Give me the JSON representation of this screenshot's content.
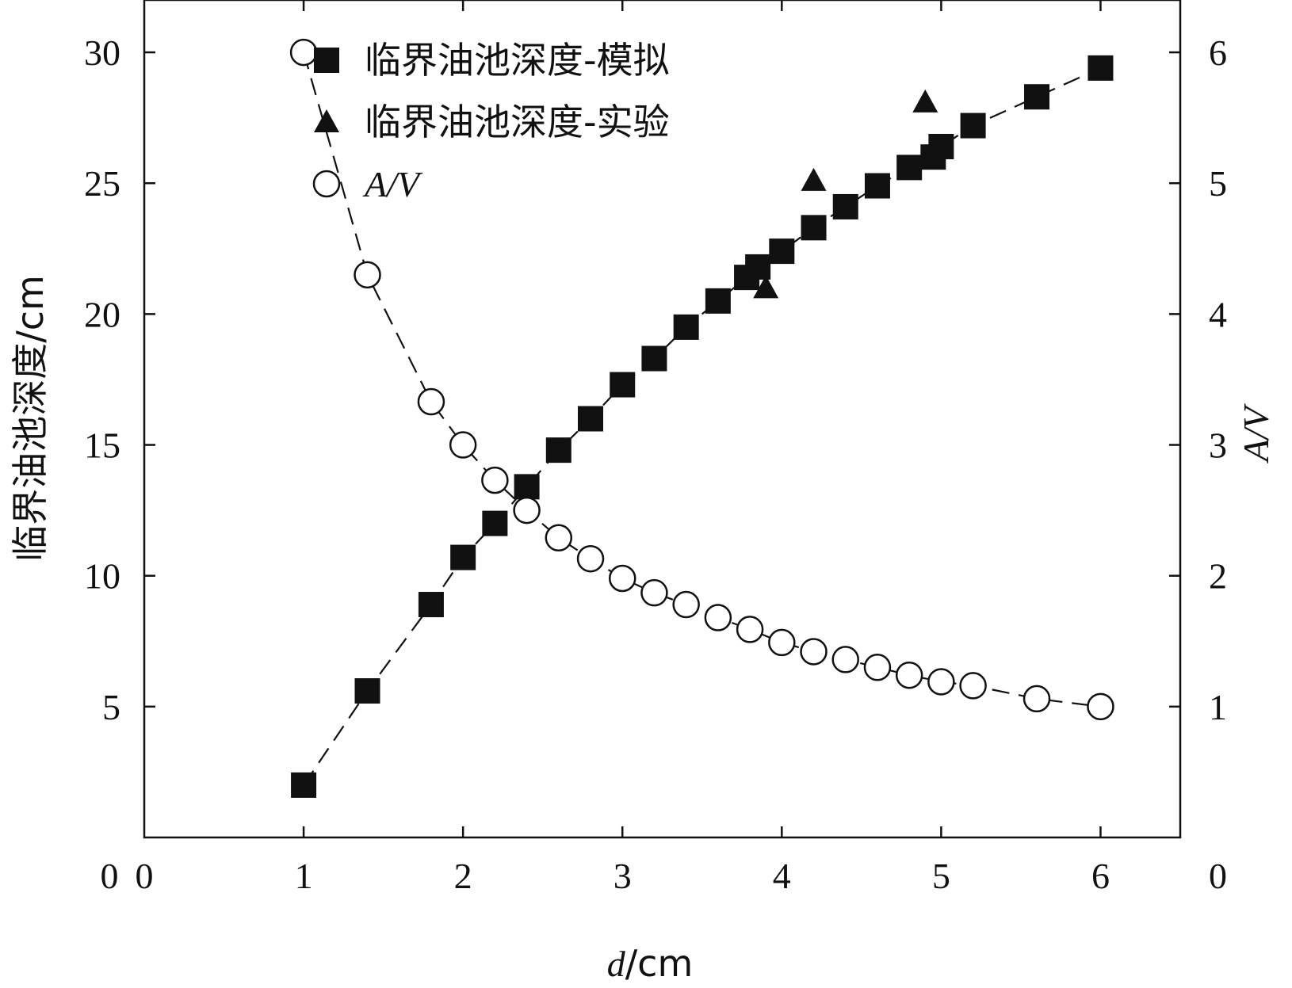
{
  "chart_data": {
    "type": "scatter",
    "x_axis": {
      "label_italic": "d",
      "label_unit": "/cm",
      "range": [
        0,
        6.5
      ],
      "tick_values": [
        0,
        1,
        2,
        3,
        4,
        5,
        6
      ],
      "tick_labels": [
        "0",
        "1",
        "2",
        "3",
        "4",
        "5",
        "6"
      ]
    },
    "y_left_axis": {
      "label": "临界油池深度/cm",
      "range": [
        0,
        32
      ],
      "tick_values": [
        5,
        10,
        15,
        20,
        25,
        30
      ],
      "tick_labels": [
        "5",
        "10",
        "15",
        "20",
        "25",
        "30"
      ],
      "origin_label": "0"
    },
    "y_right_axis": {
      "label": "A/V",
      "range": [
        0,
        6.4
      ],
      "tick_values": [
        1,
        2,
        3,
        4,
        5,
        6
      ],
      "tick_labels": [
        "1",
        "2",
        "3",
        "4",
        "5",
        "6"
      ],
      "origin_label": "0"
    },
    "series": [
      {
        "name": "临界油池深度-模拟",
        "axis": "left",
        "marker": "filled-square",
        "line": "dashed",
        "x": [
          1.0,
          1.4,
          1.8,
          2.0,
          2.2,
          2.4,
          2.6,
          2.8,
          3.0,
          3.2,
          3.4,
          3.6,
          3.78,
          3.85,
          4.0,
          4.2,
          4.4,
          4.6,
          4.8,
          4.95,
          5.0,
          5.2,
          5.6,
          6.0
        ],
        "y": [
          2.0,
          5.6,
          8.9,
          10.7,
          12.0,
          13.4,
          14.8,
          16.0,
          17.3,
          18.3,
          19.5,
          20.5,
          21.4,
          21.8,
          22.4,
          23.3,
          24.1,
          24.9,
          25.6,
          26.0,
          26.4,
          27.2,
          28.3,
          29.4
        ]
      },
      {
        "name": "临界油池深度-实验",
        "axis": "left",
        "marker": "filled-triangle",
        "line": "none",
        "x": [
          3.9,
          4.2,
          4.9
        ],
        "y": [
          21.0,
          25.1,
          28.1
        ]
      },
      {
        "name": "A/V",
        "name_italic": true,
        "axis": "right",
        "marker": "open-circle",
        "line": "dashed",
        "x": [
          1.0,
          1.4,
          1.8,
          2.0,
          2.2,
          2.4,
          2.6,
          2.8,
          3.0,
          3.2,
          3.4,
          3.6,
          3.8,
          4.0,
          4.2,
          4.4,
          4.6,
          4.8,
          5.0,
          5.2,
          5.6,
          6.0
        ],
        "y": [
          6.0,
          4.3,
          3.33,
          3.0,
          2.73,
          2.5,
          2.29,
          2.13,
          1.98,
          1.87,
          1.78,
          1.68,
          1.59,
          1.49,
          1.42,
          1.36,
          1.3,
          1.24,
          1.19,
          1.16,
          1.06,
          1.0
        ]
      }
    ],
    "legend": {
      "placement": "top-left",
      "entries": [
        {
          "marker": "filled-square",
          "label": "临界油池深度-模拟"
        },
        {
          "marker": "filled-triangle",
          "label": "临界油池深度-实验"
        },
        {
          "marker": "open-circle",
          "label": "A/V"
        }
      ]
    },
    "grid": false,
    "colors": {
      "marker": "#000000",
      "line": "#000000",
      "background": "#ffffff"
    }
  }
}
